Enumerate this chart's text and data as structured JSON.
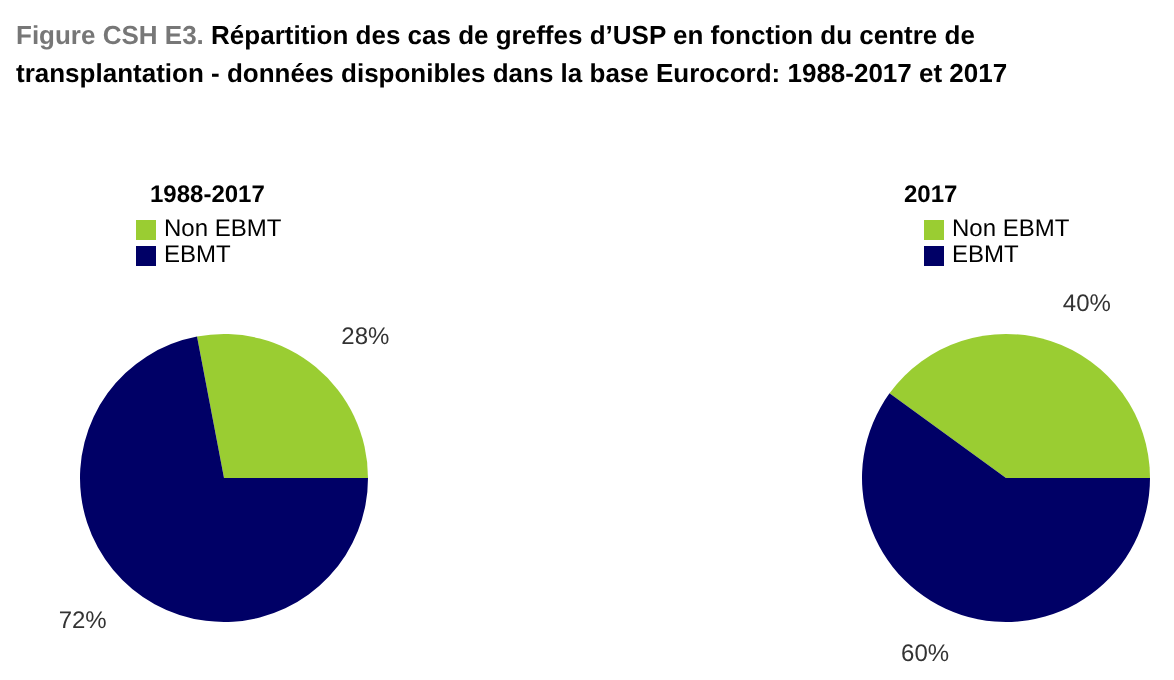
{
  "chart_data": [
    {
      "type": "pie",
      "title": "1988-2017",
      "annotations": [
        "Figure CSH E3.",
        "Répartition des cas de greffes d’USP en fonction du centre de transplantation - données disponibles dans la base Eurocord: 1988-2017 et 2017"
      ],
      "categories": [
        "Non EBMT",
        "EBMT"
      ],
      "values": [
        28,
        72
      ],
      "colors": [
        "#9acd32",
        "#000066"
      ],
      "value_labels": [
        "28%",
        "72%"
      ],
      "legend": "top left"
    },
    {
      "type": "pie",
      "title": "2017",
      "categories": [
        "Non EBMT",
        "EBMT"
      ],
      "values": [
        40,
        60
      ],
      "colors": [
        "#9acd32",
        "#000066"
      ],
      "value_labels": [
        "40%",
        "60%"
      ],
      "legend": "top left"
    }
  ]
}
